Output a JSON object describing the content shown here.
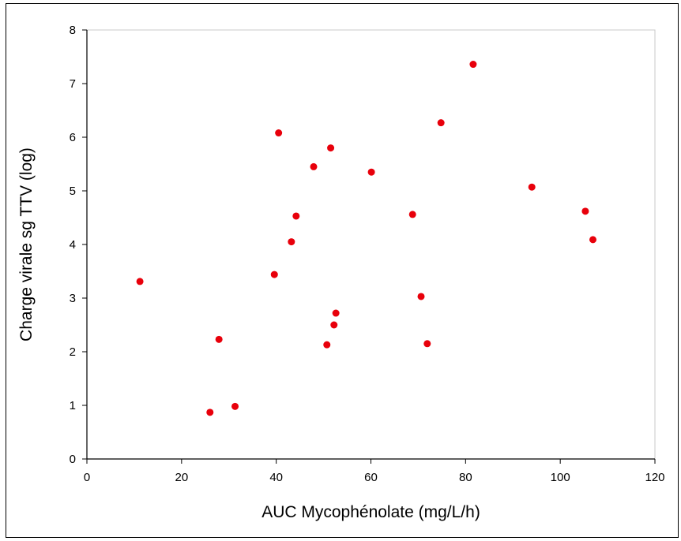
{
  "chart_data": {
    "type": "scatter",
    "title": "",
    "xlabel": "AUC Mycophénolate (mg/L/h)",
    "ylabel": "Charge virale sg TTV (log)",
    "xlim": [
      0,
      120
    ],
    "ylim": [
      0,
      8
    ],
    "xticks": [
      "0",
      "20",
      "40",
      "60",
      "80",
      "100",
      "120"
    ],
    "yticks": [
      "0",
      "1",
      "2",
      "3",
      "4",
      "5",
      "6",
      "7",
      "8"
    ],
    "grid": false,
    "legend": "none",
    "marker_color": "#e8000b",
    "series": [
      {
        "points": [
          {
            "x": 11.2,
            "y": 3.31
          },
          {
            "x": 26.0,
            "y": 0.87
          },
          {
            "x": 27.9,
            "y": 2.23
          },
          {
            "x": 31.3,
            "y": 0.98
          },
          {
            "x": 39.6,
            "y": 3.44
          },
          {
            "x": 40.5,
            "y": 6.08
          },
          {
            "x": 43.2,
            "y": 4.05
          },
          {
            "x": 44.2,
            "y": 4.53
          },
          {
            "x": 47.9,
            "y": 5.45
          },
          {
            "x": 50.7,
            "y": 2.13
          },
          {
            "x": 51.5,
            "y": 5.8
          },
          {
            "x": 52.2,
            "y": 2.5
          },
          {
            "x": 52.6,
            "y": 2.72
          },
          {
            "x": 60.1,
            "y": 5.35
          },
          {
            "x": 68.8,
            "y": 4.56
          },
          {
            "x": 70.6,
            "y": 3.03
          },
          {
            "x": 71.9,
            "y": 2.15
          },
          {
            "x": 74.8,
            "y": 6.27
          },
          {
            "x": 81.6,
            "y": 7.36
          },
          {
            "x": 94.0,
            "y": 5.07
          },
          {
            "x": 105.3,
            "y": 4.62
          },
          {
            "x": 106.9,
            "y": 4.09
          }
        ]
      }
    ]
  }
}
